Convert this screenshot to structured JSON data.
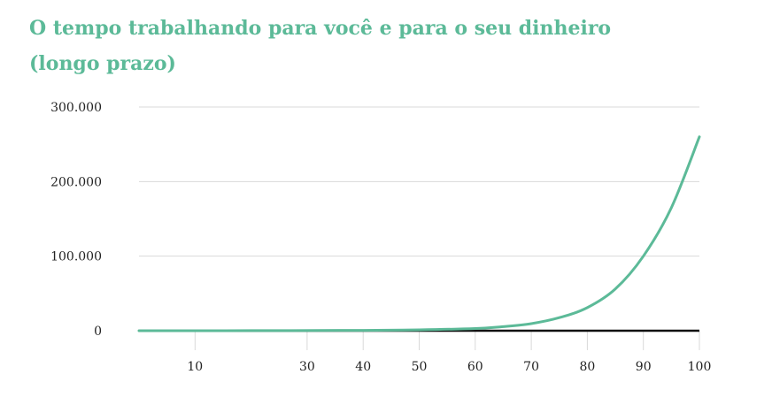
{
  "chart_data": {
    "type": "line",
    "title_line1": "O tempo trabalhando para você e para o seu dinheiro",
    "title_line2": "(longo prazo)",
    "xlabel": "",
    "ylabel": "",
    "xlim": [
      0,
      100
    ],
    "ylim": [
      0,
      300000
    ],
    "x_ticks": [
      10,
      30,
      40,
      50,
      60,
      70,
      80,
      90,
      100
    ],
    "y_ticks": [
      {
        "value": 0,
        "label": "0"
      },
      {
        "value": 100000,
        "label": "100.000"
      },
      {
        "value": 200000,
        "label": "200.000"
      },
      {
        "value": 300000,
        "label": "300.000"
      }
    ],
    "grid": true,
    "line_color": "#5cba98",
    "baseline_color": "#111111",
    "grid_color": "#d9d9d9",
    "series": [
      {
        "x": [
          0,
          20,
          40,
          50,
          60,
          65,
          70,
          75,
          80,
          85,
          90,
          95,
          100
        ],
        "y": [
          0,
          100,
          500,
          1200,
          3000,
          5500,
          9500,
          17500,
          31000,
          56000,
          100000,
          165000,
          260000
        ]
      }
    ]
  }
}
